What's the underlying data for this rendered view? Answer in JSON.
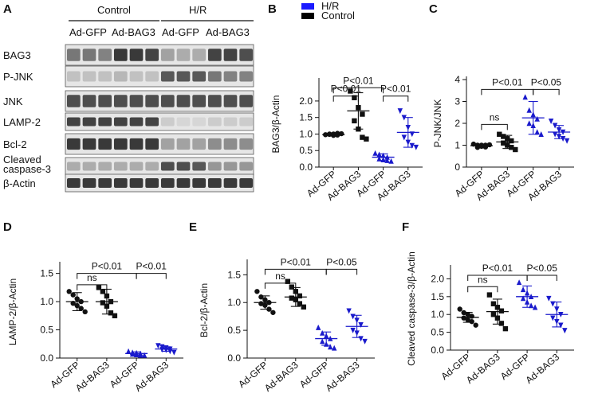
{
  "western_blot": {
    "panel": "A",
    "groups": [
      "Control",
      "H/R"
    ],
    "treatments": [
      "Ad-GFP",
      "Ad-BAG3",
      "Ad-GFP",
      "Ad-BAG3"
    ],
    "bands": [
      {
        "label": "BAG3",
        "intensity": [
          0.55,
          0.55,
          0.5,
          0.85,
          0.85,
          0.8,
          0.35,
          0.3,
          0.3,
          0.8,
          0.8,
          0.75
        ],
        "thick": 0.6
      },
      {
        "label": "P-JNK",
        "intensity": [
          0.2,
          0.2,
          0.2,
          0.25,
          0.2,
          0.2,
          0.7,
          0.7,
          0.7,
          0.55,
          0.5,
          0.5
        ],
        "thick": 0.5
      },
      {
        "label": "JNK",
        "intensity": [
          0.75,
          0.75,
          0.75,
          0.75,
          0.75,
          0.75,
          0.75,
          0.75,
          0.75,
          0.75,
          0.75,
          0.75
        ],
        "thick": 0.6
      },
      {
        "label": "LAMP-2",
        "intensity": [
          0.8,
          0.8,
          0.8,
          0.8,
          0.8,
          0.8,
          0.15,
          0.1,
          0.1,
          0.15,
          0.15,
          0.15
        ],
        "thick": 0.5
      },
      {
        "label": "Bcl-2",
        "intensity": [
          0.85,
          0.85,
          0.85,
          0.85,
          0.85,
          0.85,
          0.35,
          0.35,
          0.35,
          0.45,
          0.45,
          0.45
        ],
        "thick": 0.55
      },
      {
        "label": "Cleaved caspase-3",
        "intensity": [
          0.3,
          0.3,
          0.3,
          0.3,
          0.3,
          0.3,
          0.75,
          0.75,
          0.7,
          0.4,
          0.4,
          0.4
        ],
        "thick": 0.5
      },
      {
        "label": "β-Actin",
        "intensity": [
          0.85,
          0.85,
          0.85,
          0.85,
          0.85,
          0.85,
          0.85,
          0.85,
          0.85,
          0.85,
          0.85,
          0.85
        ],
        "thick": 0.55
      }
    ]
  },
  "legend": {
    "items": [
      {
        "label": "H/R",
        "color": "#1a1aff"
      },
      {
        "label": "Control",
        "color": "#000000"
      }
    ]
  },
  "chart_data": [
    {
      "panel": "B",
      "type": "scatter",
      "ylabel": "BAG3/β-Actin",
      "categories": [
        "Ad-GFP",
        "Ad-BAG3",
        "Ad-GFP",
        "Ad-BAG3"
      ],
      "ylim": [
        0,
        2.6
      ],
      "yticks": [
        0,
        0.5,
        1.0,
        1.5,
        2.0
      ],
      "tick_format": "1",
      "series": [
        {
          "name": "Control Ad-GFP",
          "marker": "circle",
          "color": "#111111",
          "values": [
            0.98,
            1.0,
            0.96,
            1.02,
            0.99,
            1.0,
            0.97,
            1.01
          ],
          "mean": 0.98,
          "sd": 0.02
        },
        {
          "name": "Control Ad-BAG3",
          "marker": "square",
          "color": "#111111",
          "values": [
            2.3,
            2.1,
            1.8,
            1.6,
            1.4,
            1.15,
            0.9,
            0.85
          ],
          "mean": 1.7,
          "sd": 0.55
        },
        {
          "name": "H/R Ad-GFP",
          "marker": "triangle",
          "color": "#1a1acc",
          "values": [
            0.42,
            0.38,
            0.35,
            0.3,
            0.25,
            0.22,
            0.2,
            0.18
          ],
          "mean": 0.3,
          "sd": 0.1
        },
        {
          "name": "H/R Ad-BAG3",
          "marker": "dtriangle",
          "color": "#1a1acc",
          "values": [
            1.7,
            1.5,
            1.2,
            1.0,
            0.9,
            0.75,
            0.65,
            0.6
          ],
          "mean": 1.05,
          "sd": 0.45
        }
      ],
      "brackets": [
        {
          "from": 0,
          "to": 2,
          "level": 2.4,
          "label": "P<0.01"
        },
        {
          "from": 0,
          "to": 1,
          "level": 2.15,
          "label": "P<0.01"
        },
        {
          "from": 2,
          "to": 3,
          "level": 2.15,
          "label": "P<0.01"
        }
      ]
    },
    {
      "panel": "C",
      "type": "scatter",
      "ylabel": "P-JNK/JNK",
      "categories": [
        "Ad-GFP",
        "Ad-BAG3",
        "Ad-GFP",
        "Ad-BAG3"
      ],
      "ylim": [
        0,
        4
      ],
      "yticks": [
        0,
        1,
        2,
        3,
        4
      ],
      "tick_format": "0",
      "series": [
        {
          "name": "Control Ad-GFP",
          "marker": "circle",
          "color": "#111111",
          "values": [
            1.05,
            1.0,
            0.95,
            1.0,
            0.9,
            1.0,
            0.92,
            1.02
          ],
          "mean": 0.98,
          "sd": 0.06
        },
        {
          "name": "Control Ad-BAG3",
          "marker": "square",
          "color": "#111111",
          "values": [
            1.5,
            1.4,
            1.3,
            1.2,
            1.1,
            1.0,
            0.9,
            0.8
          ],
          "mean": 1.15,
          "sd": 0.3
        },
        {
          "name": "H/R Ad-GFP",
          "marker": "triangle",
          "color": "#1a1acc",
          "values": [
            3.2,
            2.6,
            2.4,
            2.2,
            2.0,
            1.9,
            1.6,
            1.5
          ],
          "mean": 2.25,
          "sd": 0.75
        },
        {
          "name": "H/R Ad-BAG3",
          "marker": "dtriangle",
          "color": "#1a1acc",
          "values": [
            2.1,
            1.9,
            1.7,
            1.6,
            1.5,
            1.4,
            1.3,
            1.2
          ],
          "mean": 1.6,
          "sd": 0.3
        }
      ],
      "brackets": [
        {
          "from": 0,
          "to": 2,
          "level": 3.55,
          "label": "P<0.01"
        },
        {
          "from": 2,
          "to": 3,
          "level": 3.55,
          "label": "P<0.05"
        },
        {
          "from": 0,
          "to": 1,
          "level": 1.95,
          "label": "ns"
        }
      ]
    },
    {
      "panel": "D",
      "type": "scatter",
      "ylabel": "LAMP-2/β-Actin",
      "categories": [
        "Ad-GFP",
        "Ad-BAG3",
        "Ad-GFP",
        "Ad-BAG3"
      ],
      "ylim": [
        0,
        1.65
      ],
      "yticks": [
        0,
        0.5,
        1.0,
        1.5
      ],
      "tick_format": "1",
      "series": [
        {
          "name": "Control Ad-GFP",
          "marker": "circle",
          "color": "#111111",
          "values": [
            1.18,
            1.12,
            1.05,
            1.0,
            0.97,
            0.93,
            0.88,
            0.82
          ],
          "mean": 1.0,
          "sd": 0.16
        },
        {
          "name": "Control Ad-BAG3",
          "marker": "square",
          "color": "#111111",
          "values": [
            1.25,
            1.18,
            1.1,
            1.0,
            0.98,
            0.92,
            0.8,
            0.75
          ],
          "mean": 1.0,
          "sd": 0.22
        },
        {
          "name": "H/R Ad-GFP",
          "marker": "triangle",
          "color": "#1a1acc",
          "values": [
            0.12,
            0.1,
            0.09,
            0.08,
            0.07,
            0.06,
            0.05,
            0.05
          ],
          "mean": 0.08,
          "sd": 0.03
        },
        {
          "name": "H/R Ad-BAG3",
          "marker": "dtriangle",
          "color": "#1a1acc",
          "values": [
            0.22,
            0.2,
            0.18,
            0.16,
            0.15,
            0.14,
            0.12,
            0.1
          ],
          "mean": 0.16,
          "sd": 0.04
        }
      ],
      "brackets": [
        {
          "from": 0,
          "to": 2,
          "level": 1.5,
          "label": "P<0.01"
        },
        {
          "from": 2,
          "to": 3,
          "level": 1.5,
          "label": "P<0.01"
        },
        {
          "from": 0,
          "to": 1,
          "level": 1.3,
          "label": "ns"
        }
      ]
    },
    {
      "panel": "E",
      "type": "scatter",
      "ylabel": "Bcl-2/β-Actin",
      "categories": [
        "Ad-GFP",
        "Ad-BAG3",
        "Ad-GFP",
        "Ad-BAG3"
      ],
      "ylim": [
        0,
        1.72
      ],
      "yticks": [
        0,
        0.5,
        1.0,
        1.5
      ],
      "tick_format": "1",
      "series": [
        {
          "name": "Control Ad-GFP",
          "marker": "circle",
          "color": "#111111",
          "values": [
            1.2,
            1.1,
            1.05,
            1.0,
            0.98,
            0.95,
            0.88,
            0.82
          ],
          "mean": 1.0,
          "sd": 0.12
        },
        {
          "name": "Control Ad-BAG3",
          "marker": "square",
          "color": "#111111",
          "values": [
            1.38,
            1.28,
            1.2,
            1.12,
            1.08,
            1.05,
            0.98,
            0.92
          ],
          "mean": 1.1,
          "sd": 0.17
        },
        {
          "name": "H/R Ad-GFP",
          "marker": "triangle",
          "color": "#1a1acc",
          "values": [
            0.55,
            0.45,
            0.4,
            0.35,
            0.3,
            0.25,
            0.2,
            0.18
          ],
          "mean": 0.35,
          "sd": 0.12
        },
        {
          "name": "H/R Ad-BAG3",
          "marker": "dtriangle",
          "color": "#1a1acc",
          "values": [
            0.85,
            0.75,
            0.68,
            0.6,
            0.5,
            0.45,
            0.35,
            0.3
          ],
          "mean": 0.57,
          "sd": 0.2
        }
      ],
      "brackets": [
        {
          "from": 0,
          "to": 2,
          "level": 1.6,
          "label": "P<0.01"
        },
        {
          "from": 2,
          "to": 3,
          "level": 1.6,
          "label": "P<0.05"
        },
        {
          "from": 0,
          "to": 1,
          "level": 1.35,
          "label": "ns"
        }
      ]
    },
    {
      "panel": "F",
      "type": "scatter",
      "ylabel": "Cleaved caspase-3/β-Actin",
      "categories": [
        "Ad-GFP",
        "Ad-BAG3",
        "Ad-GFP",
        "Ad-BAG3"
      ],
      "ylim": [
        0,
        2.3
      ],
      "yticks": [
        0,
        0.5,
        1.0,
        1.5,
        2.0
      ],
      "tick_format": "1",
      "series": [
        {
          "name": "Control Ad-GFP",
          "marker": "circle",
          "color": "#111111",
          "values": [
            1.15,
            1.05,
            1.0,
            0.95,
            0.9,
            0.85,
            0.8,
            0.7
          ],
          "mean": 0.92,
          "sd": 0.14
        },
        {
          "name": "Control Ad-BAG3",
          "marker": "square",
          "color": "#111111",
          "values": [
            1.55,
            1.3,
            1.2,
            1.1,
            1.0,
            0.9,
            0.75,
            0.6
          ],
          "mean": 1.08,
          "sd": 0.35
        },
        {
          "name": "H/R Ad-GFP",
          "marker": "triangle",
          "color": "#1a1acc",
          "values": [
            1.9,
            1.7,
            1.6,
            1.5,
            1.45,
            1.35,
            1.25,
            1.2
          ],
          "mean": 1.5,
          "sd": 0.3
        },
        {
          "name": "H/R Ad-BAG3",
          "marker": "dtriangle",
          "color": "#1a1acc",
          "values": [
            1.45,
            1.3,
            1.15,
            1.0,
            0.9,
            0.8,
            0.7,
            0.55
          ],
          "mean": 1.0,
          "sd": 0.35
        }
      ],
      "brackets": [
        {
          "from": 0,
          "to": 2,
          "level": 2.1,
          "label": "P<0.01"
        },
        {
          "from": 2,
          "to": 3,
          "level": 2.1,
          "label": "P<0.05"
        },
        {
          "from": 0,
          "to": 1,
          "level": 1.78,
          "label": "ns"
        }
      ]
    }
  ]
}
